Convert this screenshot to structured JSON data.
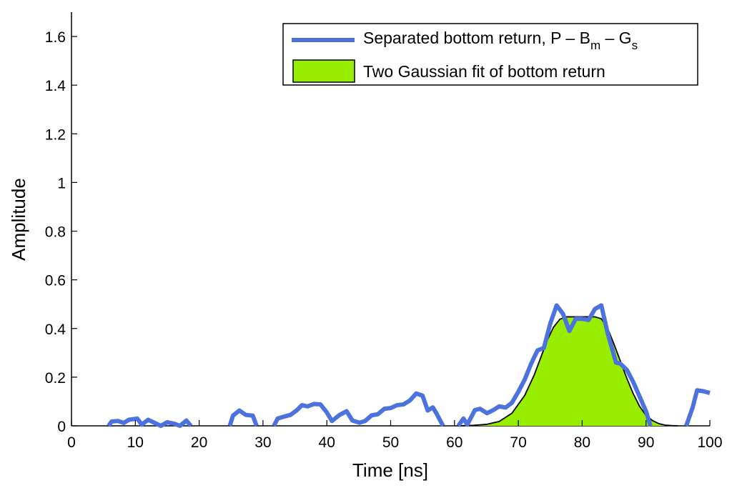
{
  "chart_data": {
    "type": "area",
    "xlabel": "Time [ns]",
    "ylabel": "Amplitude",
    "xlim": [
      0,
      100
    ],
    "ylim": [
      0,
      1.7
    ],
    "xticks": [
      0,
      10,
      20,
      30,
      40,
      50,
      60,
      70,
      80,
      90,
      100
    ],
    "xtick_labels": [
      "0",
      "10",
      "20",
      "30",
      "40",
      "50",
      "60",
      "70",
      "80",
      "90",
      "100"
    ],
    "yticks": [
      0,
      0.2,
      0.4,
      0.6,
      0.8,
      1,
      1.2,
      1.4,
      1.6
    ],
    "ytick_labels": [
      "0",
      "0.2",
      "0.4",
      "0.6",
      "0.8",
      "1",
      "1.2",
      "1.4",
      "1.6"
    ],
    "grid": false,
    "legend_position": "top-right",
    "legend": [
      {
        "label": "Separated bottom return, P – B",
        "sub1": "m",
        "mid": " – G",
        "sub2": "s",
        "kind": "line"
      },
      {
        "label": "Two Gaussian fit of bottom return",
        "kind": "patch"
      }
    ],
    "series": [
      {
        "name": "Separated bottom return, P – Bm – Gs",
        "color": "#4c72e0",
        "kind": "line",
        "segments": [
          [
            [
              5.8,
              0.0
            ],
            [
              6.3,
              0.018
            ],
            [
              7.3,
              0.02
            ],
            [
              8.2,
              0.012
            ],
            [
              9,
              0.025
            ],
            [
              10.3,
              0.03
            ],
            [
              11,
              0.005
            ],
            [
              12,
              0.025
            ],
            [
              13.2,
              0.01
            ],
            [
              14,
              0.0
            ],
            [
              15,
              0.015
            ],
            [
              16.2,
              0.008
            ],
            [
              17,
              0.0
            ],
            [
              18,
              0.022
            ],
            [
              18.7,
              0.0
            ]
          ],
          [
            [
              24.8,
              0.0
            ],
            [
              25.3,
              0.042
            ],
            [
              26.3,
              0.063
            ],
            [
              27.3,
              0.045
            ],
            [
              28.4,
              0.042
            ],
            [
              29,
              0.0
            ]
          ],
          [
            [
              31.7,
              0.0
            ],
            [
              32.3,
              0.03
            ],
            [
              33.3,
              0.038
            ],
            [
              34.3,
              0.045
            ],
            [
              35.3,
              0.064
            ],
            [
              36.1,
              0.085
            ],
            [
              37,
              0.08
            ],
            [
              38,
              0.09
            ],
            [
              39,
              0.088
            ],
            [
              40,
              0.055
            ],
            [
              40.8,
              0.02
            ],
            [
              42,
              0.045
            ],
            [
              43.1,
              0.06
            ],
            [
              44,
              0.022
            ],
            [
              45.1,
              0.013
            ],
            [
              46,
              0.02
            ],
            [
              47,
              0.043
            ],
            [
              48,
              0.048
            ],
            [
              49,
              0.07
            ],
            [
              50,
              0.073
            ],
            [
              51,
              0.085
            ],
            [
              52,
              0.088
            ],
            [
              53,
              0.104
            ],
            [
              54,
              0.133
            ],
            [
              55,
              0.124
            ],
            [
              55.8,
              0.063
            ],
            [
              56.6,
              0.076
            ],
            [
              57.2,
              0.05
            ],
            [
              58.2,
              0.0
            ]
          ],
          [
            [
              60.6,
              0.0
            ],
            [
              61.4,
              0.03
            ],
            [
              62,
              0.005
            ],
            [
              63.2,
              0.065
            ],
            [
              64,
              0.07
            ],
            [
              65.1,
              0.052
            ],
            [
              66.1,
              0.065
            ],
            [
              67,
              0.08
            ],
            [
              68,
              0.075
            ],
            [
              69,
              0.095
            ],
            [
              70,
              0.14
            ],
            [
              71,
              0.19
            ],
            [
              72,
              0.255
            ],
            [
              73,
              0.31
            ],
            [
              74,
              0.32
            ],
            [
              75,
              0.42
            ],
            [
              76,
              0.495
            ],
            [
              77,
              0.46
            ],
            [
              78,
              0.39
            ],
            [
              79,
              0.44
            ],
            [
              80,
              0.44
            ],
            [
              81,
              0.435
            ],
            [
              82,
              0.48
            ],
            [
              83,
              0.495
            ],
            [
              84,
              0.38
            ],
            [
              85.3,
              0.26
            ],
            [
              86,
              0.255
            ],
            [
              87,
              0.23
            ],
            [
              88,
              0.18
            ],
            [
              89,
              0.12
            ],
            [
              90,
              0.06
            ],
            [
              90.7,
              0.0
            ]
          ],
          [
            [
              96.3,
              0.0
            ],
            [
              97.3,
              0.075
            ],
            [
              98,
              0.146
            ],
            [
              99,
              0.142
            ],
            [
              100,
              0.135
            ]
          ]
        ]
      },
      {
        "name": "Two Gaussian fit of bottom return",
        "color": "#99ee00",
        "outline": "#000000",
        "kind": "area",
        "points": [
          [
            60.5,
            0.0
          ],
          [
            63,
            0.002
          ],
          [
            65,
            0.006
          ],
          [
            67,
            0.018
          ],
          [
            69,
            0.052
          ],
          [
            71,
            0.125
          ],
          [
            72.5,
            0.21
          ],
          [
            73.5,
            0.28
          ],
          [
            74.5,
            0.35
          ],
          [
            75.5,
            0.405
          ],
          [
            76.5,
            0.438
          ],
          [
            77.5,
            0.448
          ],
          [
            80,
            0.448
          ],
          [
            82,
            0.448
          ],
          [
            83,
            0.44
          ],
          [
            84,
            0.4
          ],
          [
            85,
            0.335
          ],
          [
            86,
            0.265
          ],
          [
            87,
            0.195
          ],
          [
            88,
            0.132
          ],
          [
            89,
            0.08
          ],
          [
            90,
            0.043
          ],
          [
            91,
            0.022
          ],
          [
            92,
            0.009
          ],
          [
            93,
            0.003
          ],
          [
            94,
            0.001
          ],
          [
            95,
            0.0
          ]
        ]
      }
    ]
  }
}
